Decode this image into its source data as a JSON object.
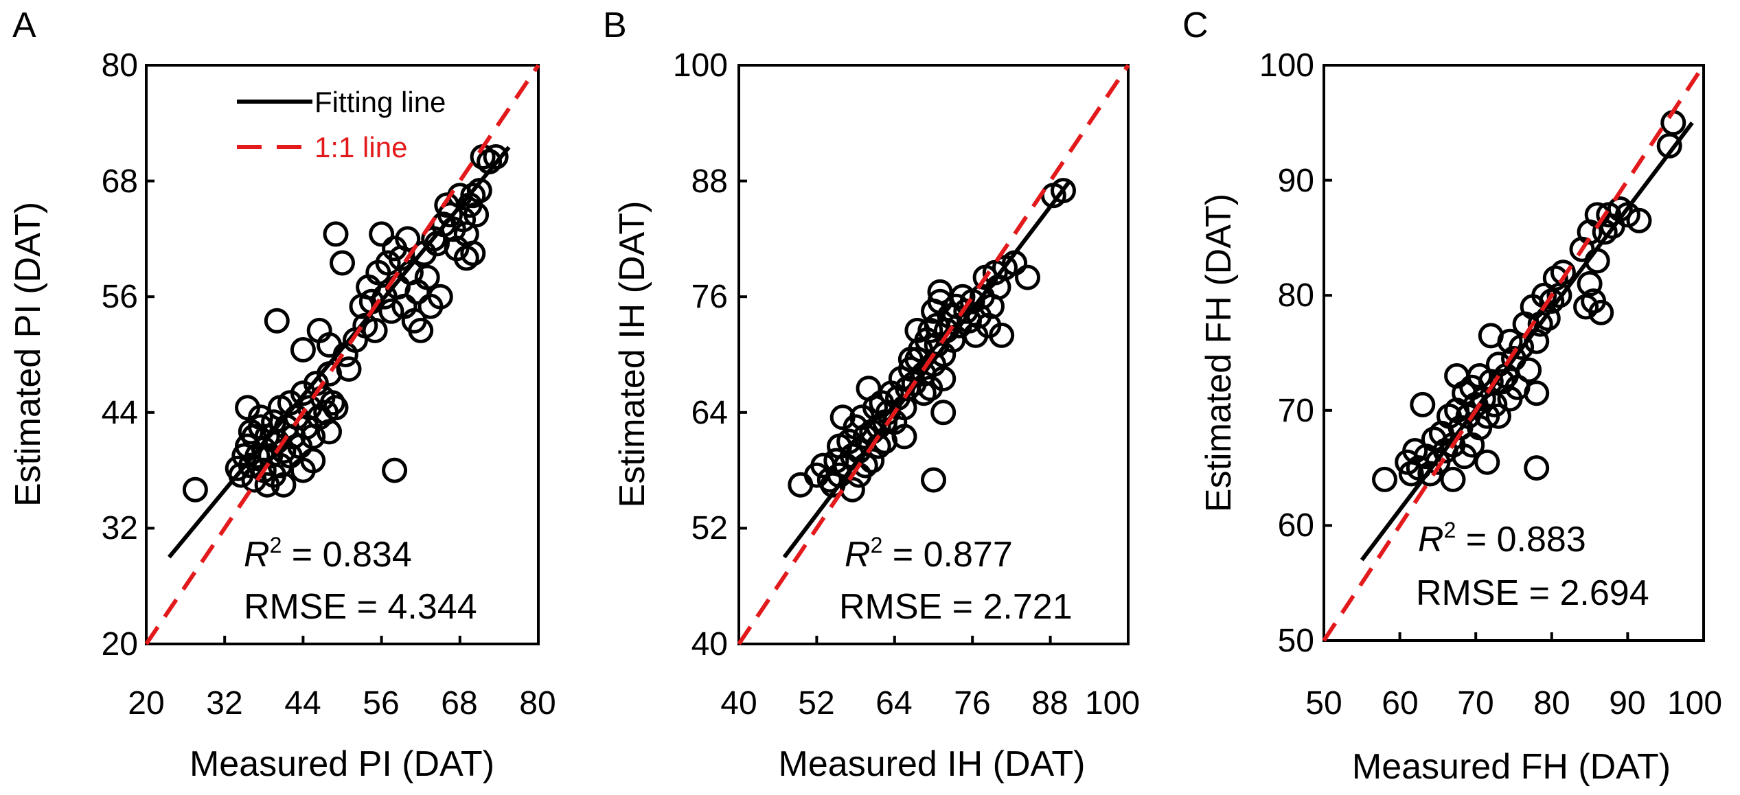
{
  "chart_data": [
    {
      "panel": "A",
      "type": "scatter",
      "xlabel": "Measured PI (DAT)",
      "ylabel": "Estimated PI (DAT)",
      "xlim": [
        20,
        80
      ],
      "ylim": [
        20,
        80
      ],
      "xticks": [
        "20",
        "32",
        "44",
        "56",
        "68",
        "80"
      ],
      "yticks": [
        "20",
        "32",
        "44",
        "56",
        "68",
        "80"
      ],
      "legend": {
        "fit_label": "Fitting line",
        "one_to_one_label": "1:1 line",
        "position": "top-left"
      },
      "stats": {
        "r2_label": "R",
        "r2_sup": "2",
        "r2_value": " = 0.834",
        "rmse_text": "RMSE = 4.344"
      },
      "fit_line": {
        "x": [
          23.5,
          75.5
        ],
        "y": [
          29.0,
          71.5
        ]
      },
      "series": [
        {
          "marker": "open-circle",
          "points": [
            [
              27.5,
              36.0
            ],
            [
              34.0,
              38.2
            ],
            [
              34.5,
              37.5
            ],
            [
              35.0,
              39.5
            ],
            [
              35.5,
              40.5
            ],
            [
              36.0,
              38.5
            ],
            [
              36.5,
              37.0
            ],
            [
              36.5,
              41.5
            ],
            [
              37.0,
              39.5
            ],
            [
              37.5,
              42.5
            ],
            [
              38.0,
              38.0
            ],
            [
              38.0,
              40.2
            ],
            [
              38.5,
              36.5
            ],
            [
              38.5,
              41.5
            ],
            [
              39.0,
              39.5
            ],
            [
              39.5,
              37.5
            ],
            [
              39.5,
              43.0
            ],
            [
              40.0,
              41.0
            ],
            [
              40.5,
              38.5
            ],
            [
              40.5,
              44.5
            ],
            [
              41.0,
              40.0
            ],
            [
              41.0,
              36.5
            ],
            [
              41.5,
              42.5
            ],
            [
              42.0,
              39.5
            ],
            [
              42.0,
              45.0
            ],
            [
              42.5,
              41.5
            ],
            [
              43.0,
              43.5
            ],
            [
              43.5,
              40.5
            ],
            [
              44.0,
              38.0
            ],
            [
              44.0,
              46.0
            ],
            [
              44.5,
              42.5
            ],
            [
              45.0,
              44.5
            ],
            [
              45.5,
              41.5
            ],
            [
              45.5,
              39.0
            ],
            [
              46.0,
              47.0
            ],
            [
              46.5,
              43.5
            ],
            [
              47.0,
              45.5
            ],
            [
              47.5,
              44.0
            ],
            [
              48.0,
              42.0
            ],
            [
              48.0,
              48.0
            ],
            [
              48.5,
              45.0
            ],
            [
              49.0,
              44.5
            ],
            [
              35.5,
              44.5
            ],
            [
              36.0,
              42.0
            ],
            [
              37.5,
              43.5
            ],
            [
              40.0,
              53.5
            ],
            [
              44.0,
              50.5
            ],
            [
              46.5,
              52.5
            ],
            [
              48.0,
              51.0
            ],
            [
              49.0,
              62.5
            ],
            [
              50.0,
              59.5
            ],
            [
              50.5,
              50.0
            ],
            [
              51.0,
              48.5
            ],
            [
              52.0,
              51.5
            ],
            [
              53.0,
              55.0
            ],
            [
              53.5,
              53.0
            ],
            [
              54.0,
              57.0
            ],
            [
              54.5,
              55.5
            ],
            [
              55.0,
              52.5
            ],
            [
              55.5,
              58.5
            ],
            [
              56.0,
              62.5
            ],
            [
              56.5,
              56.0
            ],
            [
              57.0,
              59.5
            ],
            [
              57.5,
              54.5
            ],
            [
              58.0,
              61.0
            ],
            [
              58.5,
              57.0
            ],
            [
              59.0,
              60.0
            ],
            [
              59.5,
              55.0
            ],
            [
              60.0,
              62.0
            ],
            [
              60.5,
              58.5
            ],
            [
              61.0,
              53.5
            ],
            [
              61.5,
              56.5
            ],
            [
              62.0,
              52.5
            ],
            [
              62.5,
              60.5
            ],
            [
              63.0,
              58.0
            ],
            [
              63.5,
              55.0
            ],
            [
              64.0,
              62.0
            ],
            [
              64.5,
              61.5
            ],
            [
              65.0,
              56.0
            ],
            [
              65.5,
              63.5
            ],
            [
              66.0,
              65.5
            ],
            [
              66.5,
              64.5
            ],
            [
              67.0,
              63.0
            ],
            [
              67.5,
              61.0
            ],
            [
              68.0,
              66.5
            ],
            [
              68.5,
              64.0
            ],
            [
              69.0,
              62.5
            ],
            [
              69.5,
              65.5
            ],
            [
              70.0,
              66.5
            ],
            [
              70.0,
              60.5
            ],
            [
              70.5,
              64.5
            ],
            [
              71.0,
              67.0
            ],
            [
              71.5,
              70.5
            ],
            [
              69.0,
              60.0
            ],
            [
              58.0,
              38.0
            ],
            [
              73.5,
              70.5
            ],
            [
              72.5,
              70.0
            ]
          ]
        }
      ]
    },
    {
      "panel": "B",
      "type": "scatter",
      "xlabel": "Measured IH (DAT)",
      "ylabel": "Estimated IH (DAT)",
      "xlim": [
        40,
        100
      ],
      "ylim": [
        40,
        100
      ],
      "xticks": [
        "40",
        "52",
        "64",
        "76",
        "88",
        "100"
      ],
      "yticks": [
        "40",
        "52",
        "64",
        "76",
        "88",
        "100"
      ],
      "stats": {
        "r2_label": "R",
        "r2_sup": "2",
        "r2_value": " = 0.877",
        "rmse_text": "RMSE = 2.721"
      },
      "fit_line": {
        "x": [
          47.0,
          91.0
        ],
        "y": [
          49.0,
          88.0
        ]
      },
      "series": [
        {
          "marker": "open-circle",
          "points": [
            [
              49.5,
              56.5
            ],
            [
              52.0,
              57.5
            ],
            [
              53.0,
              58.5
            ],
            [
              54.0,
              57.0
            ],
            [
              54.5,
              56.5
            ],
            [
              55.0,
              59.0
            ],
            [
              55.5,
              60.5
            ],
            [
              55.5,
              57.5
            ],
            [
              56.0,
              63.5
            ],
            [
              56.5,
              58.5
            ],
            [
              57.0,
              61.0
            ],
            [
              57.5,
              59.5
            ],
            [
              57.5,
              56.0
            ],
            [
              58.0,
              62.5
            ],
            [
              58.5,
              60.0
            ],
            [
              58.5,
              57.5
            ],
            [
              59.0,
              63.5
            ],
            [
              59.5,
              61.5
            ],
            [
              59.5,
              58.5
            ],
            [
              60.0,
              66.5
            ],
            [
              60.5,
              62.0
            ],
            [
              60.5,
              59.0
            ],
            [
              61.0,
              64.5
            ],
            [
              61.5,
              60.5
            ],
            [
              61.5,
              62.5
            ],
            [
              62.0,
              65.0
            ],
            [
              62.5,
              63.0
            ],
            [
              62.5,
              61.0
            ],
            [
              63.0,
              64.0
            ],
            [
              63.5,
              66.0
            ],
            [
              64.0,
              63.0
            ],
            [
              64.5,
              65.5
            ],
            [
              65.0,
              67.5
            ],
            [
              65.5,
              64.5
            ],
            [
              66.0,
              66.5
            ],
            [
              66.5,
              68.5
            ],
            [
              67.0,
              67.0
            ],
            [
              67.5,
              69.5
            ],
            [
              68.0,
              70.5
            ],
            [
              68.5,
              68.0
            ],
            [
              69.0,
              71.5
            ],
            [
              69.5,
              72.5
            ],
            [
              70.0,
              69.0
            ],
            [
              70.0,
              74.5
            ],
            [
              70.5,
              73.0
            ],
            [
              70.5,
              71.0
            ],
            [
              71.0,
              75.5
            ],
            [
              71.5,
              70.0
            ],
            [
              71.5,
              67.5
            ],
            [
              72.0,
              72.5
            ],
            [
              72.5,
              74.0
            ],
            [
              73.0,
              71.5
            ],
            [
              73.5,
              75.0
            ],
            [
              74.0,
              73.0
            ],
            [
              74.5,
              76.0
            ],
            [
              75.0,
              74.5
            ],
            [
              75.5,
              73.5
            ],
            [
              76.0,
              75.5
            ],
            [
              76.5,
              72.0
            ],
            [
              77.0,
              74.0
            ],
            [
              77.5,
              76.0
            ],
            [
              78.0,
              78.0
            ],
            [
              78.5,
              73.0
            ],
            [
              79.0,
              75.0
            ],
            [
              79.5,
              78.5
            ],
            [
              80.0,
              77.0
            ],
            [
              80.5,
              72.0
            ],
            [
              81.0,
              79.0
            ],
            [
              82.5,
              79.5
            ],
            [
              84.5,
              78.0
            ],
            [
              71.0,
              76.5
            ],
            [
              71.5,
              64.0
            ],
            [
              70.0,
              57.0
            ],
            [
              69.5,
              66.5
            ],
            [
              88.5,
              86.5
            ],
            [
              90.0,
              87.0
            ],
            [
              68.5,
              66.0
            ],
            [
              67.5,
              72.5
            ],
            [
              66.5,
              69.5
            ],
            [
              65.5,
              61.5
            ]
          ]
        }
      ]
    },
    {
      "panel": "C",
      "type": "scatter",
      "xlabel": "Measured FH (DAT)",
      "ylabel": "Estimated FH (DAT)",
      "xlim": [
        50,
        100
      ],
      "ylim": [
        50,
        100
      ],
      "xticks": [
        "50",
        "60",
        "70",
        "80",
        "90",
        "100"
      ],
      "yticks": [
        "50",
        "60",
        "70",
        "80",
        "90",
        "100"
      ],
      "stats": {
        "r2_label": "R",
        "r2_sup": "2",
        "r2_value": " = 0.883",
        "rmse_text": "RMSE = 2.694"
      },
      "fit_line": {
        "x": [
          55.0,
          98.5
        ],
        "y": [
          57.0,
          95.0
        ]
      },
      "series": [
        {
          "marker": "open-circle",
          "points": [
            [
              58.0,
              64.0
            ],
            [
              61.0,
              65.5
            ],
            [
              61.5,
              64.5
            ],
            [
              62.0,
              66.5
            ],
            [
              62.5,
              65.0
            ],
            [
              63.0,
              70.5
            ],
            [
              63.5,
              66.0
            ],
            [
              64.0,
              64.5
            ],
            [
              64.5,
              67.5
            ],
            [
              65.0,
              65.5
            ],
            [
              65.5,
              68.0
            ],
            [
              66.0,
              66.5
            ],
            [
              66.5,
              69.5
            ],
            [
              67.0,
              64.0
            ],
            [
              67.0,
              67.0
            ],
            [
              67.5,
              70.0
            ],
            [
              67.5,
              73.0
            ],
            [
              68.0,
              68.5
            ],
            [
              68.5,
              71.5
            ],
            [
              68.5,
              66.0
            ],
            [
              69.0,
              69.5
            ],
            [
              69.5,
              72.0
            ],
            [
              69.5,
              67.0
            ],
            [
              70.0,
              70.5
            ],
            [
              70.5,
              68.5
            ],
            [
              70.5,
              73.0
            ],
            [
              71.0,
              71.0
            ],
            [
              71.5,
              69.5
            ],
            [
              71.5,
              65.5
            ],
            [
              72.0,
              72.5
            ],
            [
              72.5,
              70.5
            ],
            [
              73.0,
              74.0
            ],
            [
              73.5,
              72.5
            ],
            [
              74.0,
              73.0
            ],
            [
              74.5,
              76.0
            ],
            [
              75.0,
              74.5
            ],
            [
              75.5,
              72.0
            ],
            [
              76.0,
              75.5
            ],
            [
              76.5,
              77.5
            ],
            [
              77.0,
              73.5
            ],
            [
              77.5,
              79.0
            ],
            [
              78.0,
              76.0
            ],
            [
              78.0,
              71.5
            ],
            [
              78.5,
              77.5
            ],
            [
              79.0,
              80.0
            ],
            [
              79.5,
              78.0
            ],
            [
              80.0,
              79.5
            ],
            [
              80.5,
              81.5
            ],
            [
              81.0,
              80.0
            ],
            [
              81.5,
              82.0
            ],
            [
              84.0,
              84.0
            ],
            [
              84.5,
              79.0
            ],
            [
              85.0,
              81.0
            ],
            [
              85.0,
              85.5
            ],
            [
              85.5,
              79.5
            ],
            [
              86.0,
              87.0
            ],
            [
              86.0,
              83.0
            ],
            [
              86.5,
              78.5
            ],
            [
              87.0,
              85.5
            ],
            [
              87.5,
              87.0
            ],
            [
              88.0,
              86.0
            ],
            [
              89.0,
              87.5
            ],
            [
              90.0,
              87.0
            ],
            [
              91.5,
              86.5
            ],
            [
              78.0,
              65.0
            ],
            [
              95.5,
              93.0
            ],
            [
              96.0,
              95.0
            ],
            [
              72.0,
              76.5
            ],
            [
              73.0,
              69.5
            ],
            [
              74.5,
              71.0
            ]
          ]
        }
      ]
    }
  ]
}
